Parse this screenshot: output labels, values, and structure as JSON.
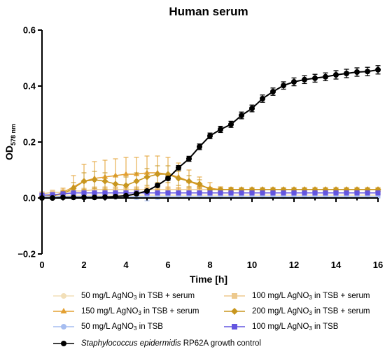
{
  "chart_data": {
    "type": "line",
    "title": "Human serum",
    "xlabel": "Time [h]",
    "ylabel": "OD",
    "ylabel_sub": "578 nm",
    "xlim": [
      0,
      16
    ],
    "ylim": [
      -0.2,
      0.6
    ],
    "x_ticks": [
      "0",
      "2",
      "4",
      "6",
      "8",
      "10",
      "12",
      "14",
      "16"
    ],
    "y_ticks": [
      "−0.2",
      "0.0",
      "0.2",
      "0.4",
      "0.6"
    ],
    "grid": false,
    "legend_position": "bottom",
    "x": [
      0,
      0.5,
      1,
      1.5,
      2,
      2.5,
      3,
      3.5,
      4,
      4.5,
      5,
      5.5,
      6,
      6.5,
      7,
      7.5,
      8,
      8.5,
      9,
      9.5,
      10,
      10.5,
      11,
      11.5,
      12,
      12.5,
      13,
      13.5,
      14,
      14.5,
      15,
      15.5,
      16
    ],
    "series": [
      {
        "name": "50 mg/L AgNO",
        "name_sub": "3",
        "name_suffix": " in TSB + serum",
        "color": "#f2dfb8",
        "marker": "circle",
        "values": [
          0.01,
          0.01,
          0.01,
          0.01,
          0.01,
          0.01,
          0.01,
          0.01,
          0.01,
          0.01,
          0.01,
          0.01,
          0.01,
          0.01,
          0.01,
          0.01,
          0.01,
          0.01,
          0.01,
          0.01,
          0.01,
          0.01,
          0.01,
          0.01,
          0.01,
          0.01,
          0.01,
          0.01,
          0.01,
          0.01,
          0.01,
          0.01,
          0.01
        ],
        "errors": [
          0.005,
          0.005,
          0.005,
          0.005,
          0.005,
          0.005,
          0.005,
          0.005,
          0.005,
          0.005,
          0.005,
          0.005,
          0.005,
          0.005,
          0.005,
          0.005,
          0.005,
          0.005,
          0.005,
          0.005,
          0.005,
          0.005,
          0.005,
          0.005,
          0.005,
          0.005,
          0.005,
          0.005,
          0.005,
          0.005,
          0.005,
          0.005,
          0.005
        ]
      },
      {
        "name": "100 mg/L AgNO",
        "name_sub": "3",
        "name_suffix": " in TSB + serum",
        "color": "#edc98d",
        "marker": "square",
        "values": [
          0.015,
          0.02,
          0.02,
          0.025,
          0.025,
          0.03,
          0.03,
          0.03,
          0.03,
          0.03,
          0.03,
          0.03,
          0.03,
          0.03,
          0.03,
          0.03,
          0.03,
          0.03,
          0.03,
          0.03,
          0.03,
          0.03,
          0.03,
          0.03,
          0.03,
          0.03,
          0.03,
          0.03,
          0.03,
          0.03,
          0.03,
          0.03,
          0.03
        ],
        "errors": [
          0.005,
          0.008,
          0.01,
          0.01,
          0.01,
          0.01,
          0.01,
          0.01,
          0.01,
          0.01,
          0.01,
          0.01,
          0.01,
          0.008,
          0.006,
          0.005,
          0.005,
          0.005,
          0.005,
          0.005,
          0.005,
          0.005,
          0.005,
          0.005,
          0.005,
          0.005,
          0.005,
          0.005,
          0.005,
          0.005,
          0.005,
          0.005,
          0.005
        ]
      },
      {
        "name": "150 mg/L AgNO",
        "name_sub": "3",
        "name_suffix": " in TSB + serum",
        "color": "#e3a032",
        "marker": "triangle",
        "values": [
          0.005,
          0.005,
          0.02,
          0.04,
          0.06,
          0.07,
          0.075,
          0.08,
          0.085,
          0.085,
          0.09,
          0.09,
          0.085,
          0.075,
          0.06,
          0.045,
          0.035,
          0.03,
          0.03,
          0.03,
          0.03,
          0.03,
          0.03,
          0.03,
          0.03,
          0.03,
          0.03,
          0.03,
          0.03,
          0.03,
          0.03,
          0.03,
          0.03
        ],
        "errors": [
          0.008,
          0.01,
          0.015,
          0.04,
          0.06,
          0.06,
          0.06,
          0.06,
          0.06,
          0.06,
          0.06,
          0.06,
          0.06,
          0.05,
          0.04,
          0.03,
          0.02,
          0.01,
          0.008,
          0.006,
          0.005,
          0.005,
          0.005,
          0.005,
          0.005,
          0.005,
          0.005,
          0.005,
          0.005,
          0.005,
          0.005,
          0.005,
          0.005
        ]
      },
      {
        "name": "200 mg/L AgNO",
        "name_sub": "3",
        "name_suffix": " in TSB + serum",
        "color": "#c8961e",
        "marker": "diamond",
        "values": [
          0.005,
          0.008,
          0.015,
          0.035,
          0.06,
          0.065,
          0.06,
          0.05,
          0.045,
          0.06,
          0.075,
          0.085,
          0.085,
          0.07,
          0.06,
          0.05,
          0.03,
          0.03,
          0.03,
          0.03,
          0.03,
          0.03,
          0.03,
          0.03,
          0.03,
          0.03,
          0.03,
          0.03,
          0.03,
          0.03,
          0.03,
          0.03,
          0.03
        ],
        "errors": [
          0.005,
          0.008,
          0.01,
          0.02,
          0.03,
          0.03,
          0.03,
          0.03,
          0.03,
          0.03,
          0.03,
          0.03,
          0.03,
          0.025,
          0.02,
          0.015,
          0.008,
          0.005,
          0.005,
          0.005,
          0.005,
          0.005,
          0.005,
          0.005,
          0.005,
          0.005,
          0.005,
          0.005,
          0.005,
          0.005,
          0.005,
          0.005,
          0.005
        ]
      },
      {
        "name": "50 mg/L AgNO",
        "name_sub": "3",
        "name_suffix": " in TSB",
        "color": "#a6bdf0",
        "marker": "circle",
        "values": [
          0.005,
          0.005,
          0.005,
          0.005,
          0.005,
          0.005,
          0.005,
          0.005,
          0.005,
          0.005,
          0.005,
          0.005,
          0.005,
          0.005,
          0.005,
          0.005,
          0.005,
          0.005,
          0.005,
          0.005,
          0.005,
          0.005,
          0.005,
          0.005,
          0.005,
          0.005,
          0.005,
          0.005,
          0.005,
          0.005,
          0.005,
          0.005,
          0.005
        ],
        "errors": [
          0.005,
          0.005,
          0.005,
          0.005,
          0.005,
          0.005,
          0.005,
          0.005,
          0.005,
          0.01,
          0.015,
          0.01,
          0.005,
          0.005,
          0.005,
          0.005,
          0.005,
          0.005,
          0.005,
          0.005,
          0.005,
          0.005,
          0.005,
          0.005,
          0.005,
          0.005,
          0.005,
          0.005,
          0.005,
          0.005,
          0.005,
          0.005,
          0.005
        ]
      },
      {
        "name": "100 mg/L AgNO",
        "name_sub": "3",
        "name_suffix": " in TSB",
        "color": "#6456e0",
        "marker": "square",
        "values": [
          0.01,
          0.012,
          0.015,
          0.018,
          0.018,
          0.018,
          0.018,
          0.018,
          0.018,
          0.018,
          0.018,
          0.018,
          0.018,
          0.018,
          0.018,
          0.018,
          0.018,
          0.018,
          0.018,
          0.018,
          0.018,
          0.018,
          0.018,
          0.018,
          0.018,
          0.018,
          0.018,
          0.018,
          0.018,
          0.018,
          0.018,
          0.018,
          0.018
        ],
        "errors": [
          0.004,
          0.004,
          0.004,
          0.004,
          0.004,
          0.004,
          0.004,
          0.004,
          0.004,
          0.004,
          0.004,
          0.004,
          0.004,
          0.004,
          0.004,
          0.004,
          0.004,
          0.004,
          0.004,
          0.004,
          0.004,
          0.004,
          0.004,
          0.004,
          0.004,
          0.004,
          0.004,
          0.004,
          0.004,
          0.004,
          0.004,
          0.004,
          0.004
        ]
      },
      {
        "name": "Staphylococcus epidermidis",
        "name_suffix": " RP62A growth control",
        "name_italic": true,
        "color": "#000000",
        "marker": "circle",
        "values": [
          0.0,
          0.0,
          0.002,
          0.002,
          0.002,
          0.002,
          0.003,
          0.005,
          0.008,
          0.015,
          0.025,
          0.045,
          0.07,
          0.108,
          0.14,
          0.183,
          0.222,
          0.245,
          0.263,
          0.295,
          0.32,
          0.355,
          0.38,
          0.402,
          0.415,
          0.423,
          0.428,
          0.433,
          0.44,
          0.445,
          0.45,
          0.452,
          0.458
        ],
        "errors": [
          0.002,
          0.002,
          0.002,
          0.002,
          0.002,
          0.002,
          0.002,
          0.002,
          0.003,
          0.004,
          0.005,
          0.006,
          0.007,
          0.008,
          0.009,
          0.01,
          0.01,
          0.011,
          0.011,
          0.012,
          0.012,
          0.013,
          0.013,
          0.013,
          0.014,
          0.014,
          0.014,
          0.014,
          0.015,
          0.015,
          0.015,
          0.015,
          0.015
        ]
      }
    ]
  }
}
